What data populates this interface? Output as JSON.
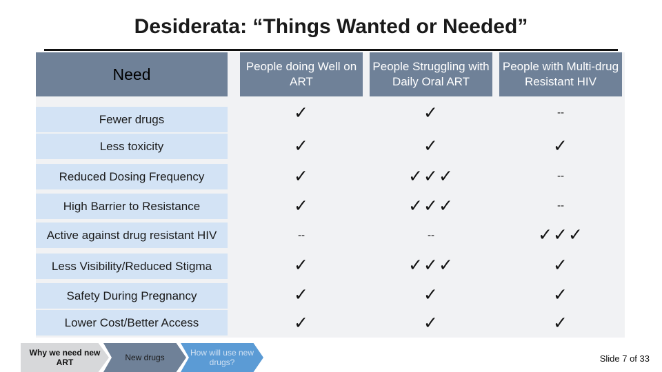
{
  "title": "Desiderata: “Things Wanted or Needed”",
  "table": {
    "need_header": "Need",
    "columns": [
      "People doing Well on ART",
      "People Struggling with Daily Oral ART",
      "People with Multi-drug Resistant HIV"
    ],
    "rows": [
      {
        "label": "Fewer drugs",
        "cells": [
          "✓",
          "✓",
          "--"
        ]
      },
      {
        "label": "Less toxicity",
        "cells": [
          "✓",
          "✓",
          "✓"
        ]
      },
      {
        "label": "Reduced Dosing Frequency",
        "cells": [
          "✓",
          "✓✓✓",
          "--"
        ]
      },
      {
        "label": "High Barrier to Resistance",
        "cells": [
          "✓",
          "✓✓✓",
          "--"
        ]
      },
      {
        "label": "Active against drug resistant HIV",
        "cells": [
          "--",
          "--",
          "✓✓✓"
        ]
      },
      {
        "label": "Less Visibility/Reduced Stigma",
        "cells": [
          "✓",
          "✓✓✓",
          "✓"
        ]
      },
      {
        "label": "Safety During Pregnancy",
        "cells": [
          "✓",
          "✓",
          "✓"
        ]
      },
      {
        "label": "Lower Cost/Better Access",
        "cells": [
          "✓",
          "✓",
          "✓"
        ]
      }
    ]
  },
  "nav": {
    "items": [
      "Why we need new ART",
      "New drugs",
      "How will use new drugs?"
    ]
  },
  "footer": {
    "slide_number": "Slide 7 of 33"
  }
}
